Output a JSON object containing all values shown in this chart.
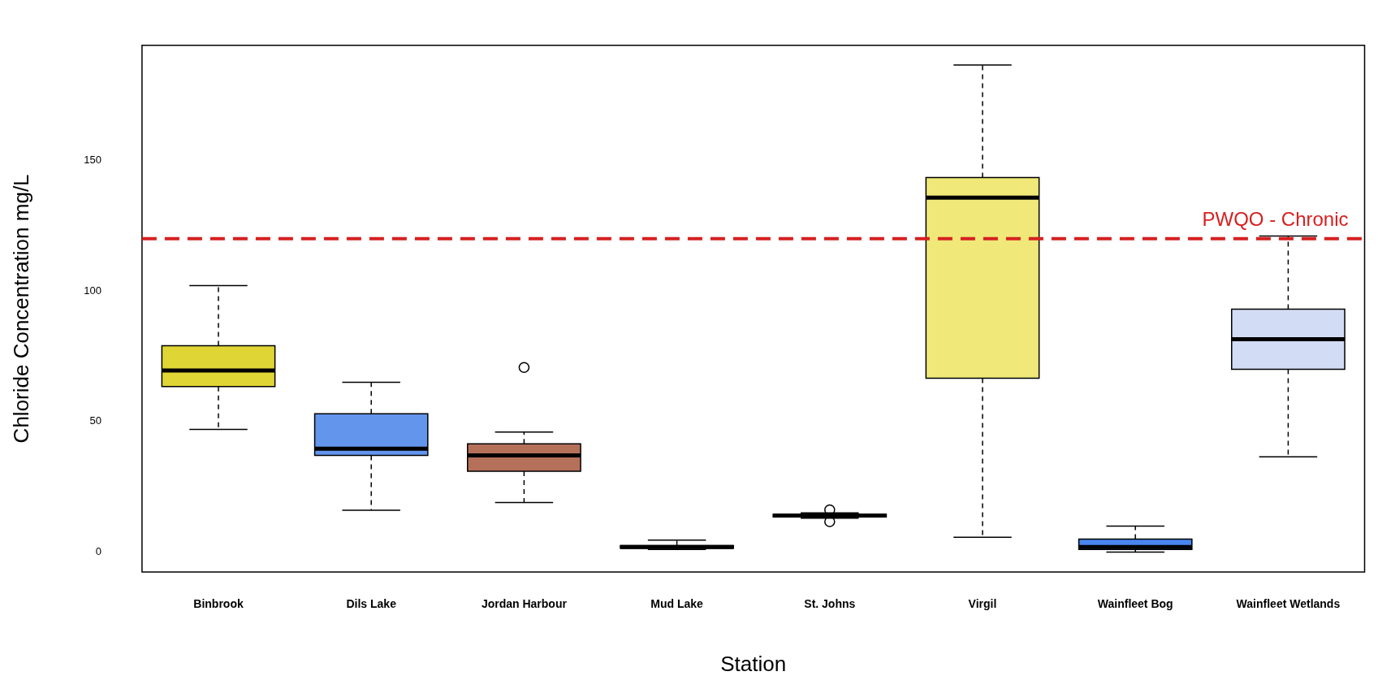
{
  "chart_data": {
    "type": "box",
    "xlabel": "Station",
    "ylabel": "Chloride Concentration mg/L",
    "categories": [
      "Binbrook",
      "Dils Lake",
      "Jordan Harbour",
      "Mud Lake",
      "St. Johns",
      "Virgil",
      "Wainfleet Bog",
      "Wainfleet Wetlands"
    ],
    "colors": [
      "#dfd535",
      "#6495ed",
      "#b5705a",
      "#3f6fd6",
      "#303030",
      "#f0e878",
      "#4a86f0",
      "#d3dcf5"
    ],
    "boxes": [
      {
        "low": 47,
        "q1": 63.4,
        "median": 69.5,
        "q3": 79,
        "high": 102
      },
      {
        "low": 16,
        "q1": 37,
        "median": 39.6,
        "q3": 53,
        "high": 65
      },
      {
        "low": 19,
        "q1": 31,
        "median": 37,
        "q3": 41.5,
        "high": 46,
        "outliers": [
          70.7
        ]
      },
      {
        "low": 1,
        "q1": 1.5,
        "median": 2,
        "q3": 2.5,
        "high": 4.6
      },
      {
        "low": 13,
        "q1": 13.5,
        "median": 14,
        "q3": 14.5,
        "high": 15,
        "outliers": [
          11.7,
          16.2
        ]
      },
      {
        "low": 5.7,
        "q1": 66.6,
        "median": 135.7,
        "q3": 143.4,
        "high": 186.5
      },
      {
        "low": 0,
        "q1": 1,
        "median": 2,
        "q3": 5,
        "high": 10
      },
      {
        "low": 36.5,
        "q1": 70,
        "median": 81.5,
        "q3": 93,
        "high": 121
      }
    ],
    "ylim": [
      -7.6,
      194
    ],
    "yticks": [
      0,
      50,
      100,
      150
    ],
    "ref_lines": [
      {
        "axis": "y",
        "value": 120,
        "label": "PWQO - Chronic",
        "color": "#d62020",
        "line_style": "dashed"
      }
    ],
    "grid": false,
    "legend": false
  }
}
